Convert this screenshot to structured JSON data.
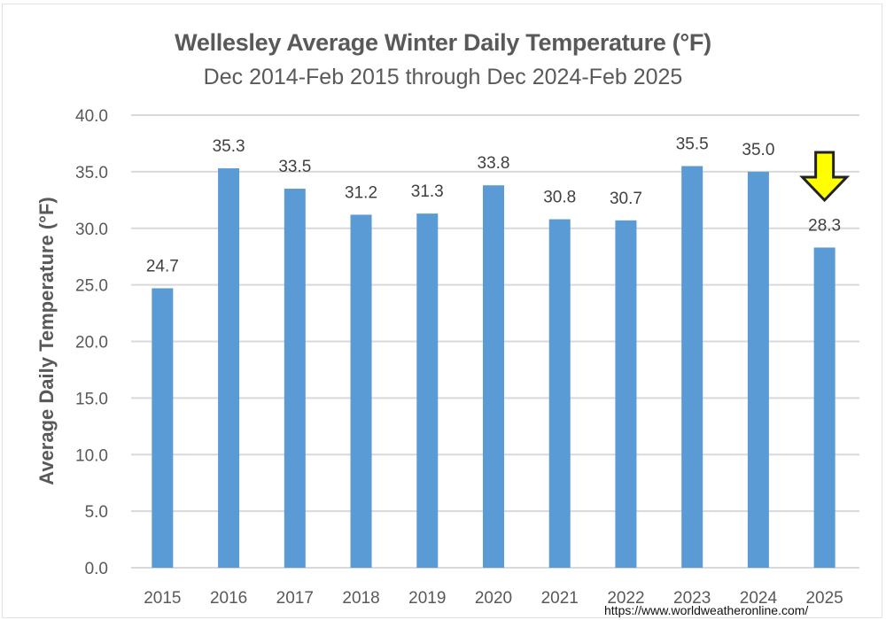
{
  "chart_data": {
    "type": "bar",
    "title": "Wellesley Average Winter Daily Temperature  (°F)",
    "subtitle": "Dec 2014-Feb 2015 through Dec 2024-Feb 2025",
    "xlabel": "",
    "ylabel": "Average  Daily Temperature (°F)",
    "categories": [
      "2015",
      "2016",
      "2017",
      "2018",
      "2019",
      "2020",
      "2021",
      "2022",
      "2023",
      "2024",
      "2025"
    ],
    "values": [
      24.7,
      35.3,
      33.5,
      31.2,
      31.3,
      33.8,
      30.8,
      30.7,
      35.5,
      35.0,
      28.3
    ],
    "data_labels": [
      "24.7",
      "35.3",
      "33.5",
      "31.2",
      "31.3",
      "33.8",
      "30.8",
      "30.7",
      "35.5",
      "35.0",
      "28.3"
    ],
    "ylim": [
      0,
      40
    ],
    "yticks": [
      "0.0",
      "5.0",
      "10.0",
      "15.0",
      "20.0",
      "25.0",
      "30.0",
      "35.0",
      "40.0"
    ],
    "grid": true,
    "bar_color": "#5b9bd5",
    "annotation": {
      "type": "down-arrow",
      "category": "2025",
      "color": "#ffff00"
    },
    "source": "https://www.worldweatheronline.com/"
  }
}
